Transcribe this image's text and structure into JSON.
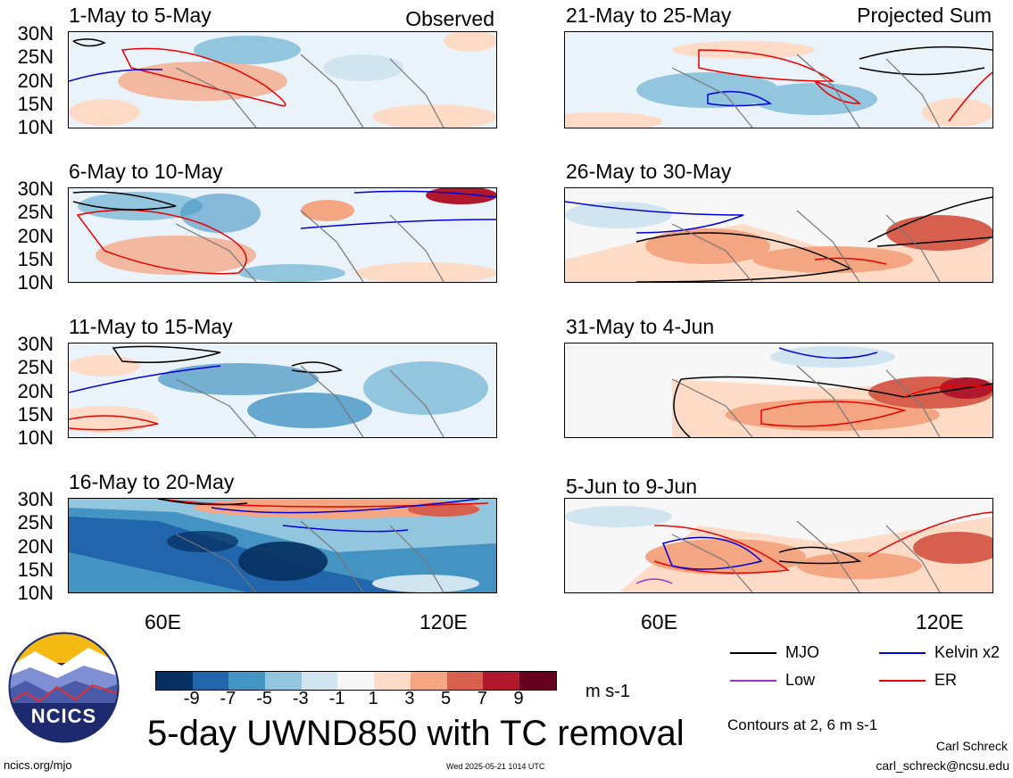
{
  "panels_left": [
    {
      "title": "1-May to 5-May",
      "label": "Observed"
    },
    {
      "title": "6-May to 10-May",
      "label": ""
    },
    {
      "title": "11-May to 15-May",
      "label": ""
    },
    {
      "title": "16-May to 20-May",
      "label": ""
    }
  ],
  "panels_right": [
    {
      "title": "21-May to 25-May",
      "label": "Projected Sum"
    },
    {
      "title": "26-May to 30-May",
      "label": ""
    },
    {
      "title": "31-May to 4-Jun",
      "label": ""
    },
    {
      "title": "5-Jun to 9-Jun",
      "label": ""
    }
  ],
  "lat_ticks": [
    "30N",
    "25N",
    "20N",
    "15N",
    "10N"
  ],
  "lon_ticks": [
    "60E",
    "120E"
  ],
  "colorbar": {
    "colors": [
      "#053061",
      "#2166ac",
      "#4393c3",
      "#92c5de",
      "#d1e5f0",
      "#f7f7f7",
      "#fddbc7",
      "#f4a582",
      "#d6604d",
      "#b2182b",
      "#67001f"
    ],
    "labels": [
      "-9",
      "-7",
      "-5",
      "-3",
      "-1",
      "1",
      "3",
      "5",
      "7",
      "9"
    ],
    "units": "m s-1"
  },
  "legend": {
    "items": [
      {
        "label": "MJO",
        "color": "#000000"
      },
      {
        "label": "Kelvin x2",
        "color": "#0000dd"
      },
      {
        "label": "Low",
        "color": "#9933cc"
      },
      {
        "label": "ER",
        "color": "#ee0000"
      }
    ],
    "note": "Contours at 2, 6 m s-1"
  },
  "logo_text": "NCICS",
  "main_title": "5-day UWND850 with TC removal",
  "author": "Carl Schreck",
  "email": "carl_schreck@ncsu.edu",
  "url": "ncics.org/mjo",
  "timestamp": "Wed 2025-05-21 1014 UTC"
}
